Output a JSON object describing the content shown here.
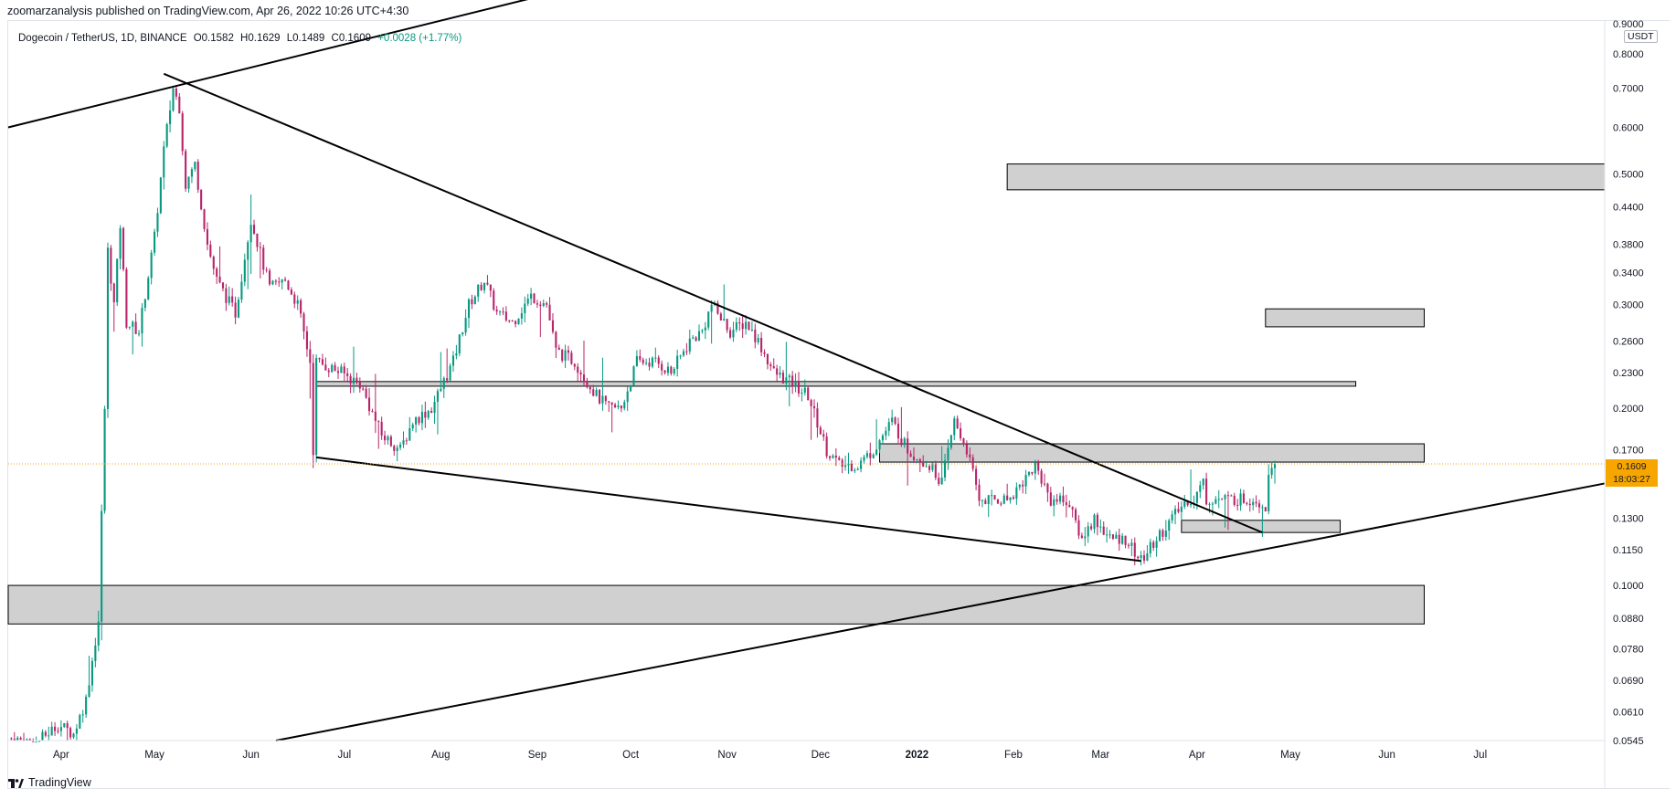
{
  "header": {
    "published_line": "zoomarzanalysis published on TradingView.com, Apr 26, 2022 10:26 UTC+4:30"
  },
  "symbol": {
    "name": "Dogecoin / TetherUS, 1D, BINANCE",
    "open": "O0.1582",
    "high": "H0.1629",
    "low": "L0.1489",
    "close": "C0.1609",
    "change": "+0.0028 (+1.77%)"
  },
  "price_axis": {
    "unit": "USDT",
    "ticks": [
      "0.8000",
      "0.7000",
      "0.6000",
      "0.5000",
      "0.4400",
      "0.3800",
      "0.3400",
      "0.3000",
      "0.2600",
      "0.2300",
      "0.2000",
      "0.1700",
      "0.1300",
      "0.1150",
      "0.1000",
      "0.0880",
      "0.0780",
      "0.0690",
      "0.0610",
      "0.0545"
    ],
    "top_partial": "0.9000",
    "last_price": "0.1609",
    "countdown": "18:03:27"
  },
  "time_axis": {
    "ticks": [
      "Apr",
      "May",
      "Jun",
      "Jul",
      "Aug",
      "Sep",
      "Oct",
      "Nov",
      "Dec",
      "2022",
      "Feb",
      "Mar",
      "Apr",
      "May",
      "Jun",
      "Jul"
    ]
  },
  "brand": {
    "name": "TradingView"
  },
  "colors": {
    "up": "#089981",
    "down": "#b8256a",
    "zone_fill": "#d0d0d0",
    "zone_border": "#000000",
    "trendline": "#000000",
    "last_price": "#f7a600"
  },
  "chart_data": {
    "type": "candlestick",
    "scale": "log",
    "ylim": [
      0.0545,
      0.9
    ],
    "xlim": [
      "2021-03-15",
      "2022-08-10"
    ],
    "price_path": [
      [
        "2021-03-16",
        0.055
      ],
      [
        "2021-03-25",
        0.054
      ],
      [
        "2021-04-01",
        0.058
      ],
      [
        "2021-04-06",
        0.056
      ],
      [
        "2021-04-10",
        0.064
      ],
      [
        "2021-04-14",
        0.087
      ],
      [
        "2021-04-16",
        0.2
      ],
      [
        "2021-04-17",
        0.37
      ],
      [
        "2021-04-19",
        0.3
      ],
      [
        "2021-04-21",
        0.41
      ],
      [
        "2021-04-23",
        0.28
      ],
      [
        "2021-04-27",
        0.27
      ],
      [
        "2021-05-02",
        0.39
      ],
      [
        "2021-05-05",
        0.55
      ],
      [
        "2021-05-08",
        0.7
      ],
      [
        "2021-05-10",
        0.65
      ],
      [
        "2021-05-12",
        0.48
      ],
      [
        "2021-05-15",
        0.52
      ],
      [
        "2021-05-19",
        0.38
      ],
      [
        "2021-05-22",
        0.33
      ],
      [
        "2021-05-28",
        0.29
      ],
      [
        "2021-06-02",
        0.42
      ],
      [
        "2021-06-08",
        0.32
      ],
      [
        "2021-06-13",
        0.33
      ],
      [
        "2021-06-17",
        0.3
      ],
      [
        "2021-06-21",
        0.24
      ],
      [
        "2021-06-22",
        0.17
      ],
      [
        "2021-06-23",
        0.24
      ],
      [
        "2021-07-01",
        0.23
      ],
      [
        "2021-07-07",
        0.22
      ],
      [
        "2021-07-14",
        0.18
      ],
      [
        "2021-07-20",
        0.17
      ],
      [
        "2021-07-24",
        0.19
      ],
      [
        "2021-07-30",
        0.2
      ],
      [
        "2021-08-06",
        0.24
      ],
      [
        "2021-08-11",
        0.3
      ],
      [
        "2021-08-16",
        0.33
      ],
      [
        "2021-08-20",
        0.29
      ],
      [
        "2021-08-25",
        0.28
      ],
      [
        "2021-08-31",
        0.31
      ],
      [
        "2021-09-05",
        0.3
      ],
      [
        "2021-09-08",
        0.25
      ],
      [
        "2021-09-14",
        0.24
      ],
      [
        "2021-09-21",
        0.21
      ],
      [
        "2021-09-25",
        0.2
      ],
      [
        "2021-09-29",
        0.2
      ],
      [
        "2021-10-04",
        0.24
      ],
      [
        "2021-10-10",
        0.24
      ],
      [
        "2021-10-15",
        0.23
      ],
      [
        "2021-10-21",
        0.26
      ],
      [
        "2021-10-25",
        0.27
      ],
      [
        "2021-10-28",
        0.3
      ],
      [
        "2021-11-03",
        0.27
      ],
      [
        "2021-11-08",
        0.28
      ],
      [
        "2021-11-12",
        0.26
      ],
      [
        "2021-11-17",
        0.23
      ],
      [
        "2021-11-23",
        0.22
      ],
      [
        "2021-11-28",
        0.21
      ],
      [
        "2021-12-04",
        0.17
      ],
      [
        "2021-12-08",
        0.16
      ],
      [
        "2021-12-14",
        0.16
      ],
      [
        "2021-12-19",
        0.17
      ],
      [
        "2021-12-25",
        0.19
      ],
      [
        "2021-12-30",
        0.17
      ],
      [
        "2022-01-06",
        0.16
      ],
      [
        "2022-01-10",
        0.15
      ],
      [
        "2022-01-14",
        0.19
      ],
      [
        "2022-01-18",
        0.17
      ],
      [
        "2022-01-22",
        0.14
      ],
      [
        "2022-01-26",
        0.14
      ],
      [
        "2022-01-31",
        0.14
      ],
      [
        "2022-02-05",
        0.15
      ],
      [
        "2022-02-09",
        0.16
      ],
      [
        "2022-02-14",
        0.14
      ],
      [
        "2022-02-19",
        0.14
      ],
      [
        "2022-02-24",
        0.12
      ],
      [
        "2022-02-28",
        0.13
      ],
      [
        "2022-03-05",
        0.12
      ],
      [
        "2022-03-10",
        0.12
      ],
      [
        "2022-03-15",
        0.11
      ],
      [
        "2022-03-20",
        0.12
      ],
      [
        "2022-03-25",
        0.13
      ],
      [
        "2022-03-30",
        0.14
      ],
      [
        "2022-04-01",
        0.14
      ],
      [
        "2022-04-04",
        0.15
      ],
      [
        "2022-04-05",
        0.14
      ],
      [
        "2022-04-10",
        0.14
      ],
      [
        "2022-04-14",
        0.14
      ],
      [
        "2022-04-18",
        0.14
      ],
      [
        "2022-04-21",
        0.14
      ],
      [
        "2022-04-24",
        0.136
      ],
      [
        "2022-04-25",
        0.158
      ],
      [
        "2022-04-26",
        0.1609
      ]
    ],
    "last_candle": {
      "date": "2022-04-26",
      "open": 0.1582,
      "high": 0.1629,
      "low": 0.1489,
      "close": 0.1609
    },
    "zones": [
      {
        "from": "2022-01-30",
        "to": "2022-08-10",
        "low": 0.47,
        "high": 0.52
      },
      {
        "from": "2022-04-23",
        "to": "2022-06-13",
        "low": 0.275,
        "high": 0.295
      },
      {
        "from": "2021-06-22",
        "to": "2022-05-22",
        "low": 0.218,
        "high": 0.222
      },
      {
        "from": "2021-12-20",
        "to": "2022-06-13",
        "low": 0.162,
        "high": 0.174
      },
      {
        "from": "2022-03-27",
        "to": "2022-05-17",
        "low": 0.123,
        "high": 0.129
      },
      {
        "from": "2021-03-15",
        "to": "2022-06-13",
        "low": 0.086,
        "high": 0.1
      }
    ],
    "trendlines": [
      {
        "p1": [
          "2021-03-15",
          0.6
        ],
        "p2": [
          "2021-09-01",
          1.0
        ]
      },
      {
        "p1": [
          "2021-05-04",
          0.74
        ],
        "p2": [
          "2022-04-22",
          0.123
        ]
      },
      {
        "p1": [
          "2021-06-22",
          0.165
        ],
        "p2": [
          "2022-03-14",
          0.11
        ]
      },
      {
        "p1": [
          "2021-06-09",
          0.0545
        ],
        "p2": [
          "2022-08-10",
          0.149
        ]
      }
    ],
    "last_price_line": 0.1609
  }
}
